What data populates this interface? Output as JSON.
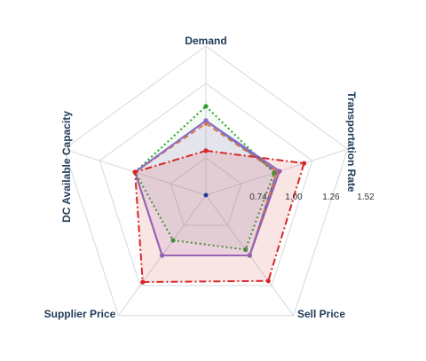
{
  "chart_data": {
    "type": "radar",
    "axes": [
      "Demand",
      "Transportation Rate",
      "Sell Price",
      "Supplier Price",
      "DC Available Capacity"
    ],
    "rlim": [
      0.48,
      1.52
    ],
    "ticks": [
      0.74,
      1.0,
      1.26,
      1.52
    ],
    "tick_labels": [
      "0.74",
      "1.00",
      "1.26",
      "1.52"
    ],
    "grid": true,
    "series": [
      {
        "values": [
          1.0,
          1.0,
          1.0,
          1.0,
          1.0
        ],
        "color": "#4472c4",
        "dash": "solid",
        "fill": "none"
      },
      {
        "values": [
          0.98,
          1.0,
          1.0,
          1.0,
          1.0
        ],
        "color": "#ed7d31",
        "dash": "6,4",
        "fill": "none"
      },
      {
        "values": [
          1.1,
          0.98,
          0.95,
          0.87,
          1.0
        ],
        "color": "#2ca02c",
        "dash": "2,3",
        "fill": "rgba(44,160,44,0.06)"
      },
      {
        "values": [
          1.0,
          1.02,
          1.0,
          1.0,
          1.0
        ],
        "color": "#8c6bc8",
        "dash": "solid",
        "fill": "rgba(140,107,200,0.14)"
      },
      {
        "values": [
          0.79,
          1.2,
          1.22,
          1.23,
          1.0
        ],
        "color": "#d62728",
        "dash": "8,3,2,3",
        "fill": "rgba(214,39,40,0.12)"
      }
    ]
  }
}
